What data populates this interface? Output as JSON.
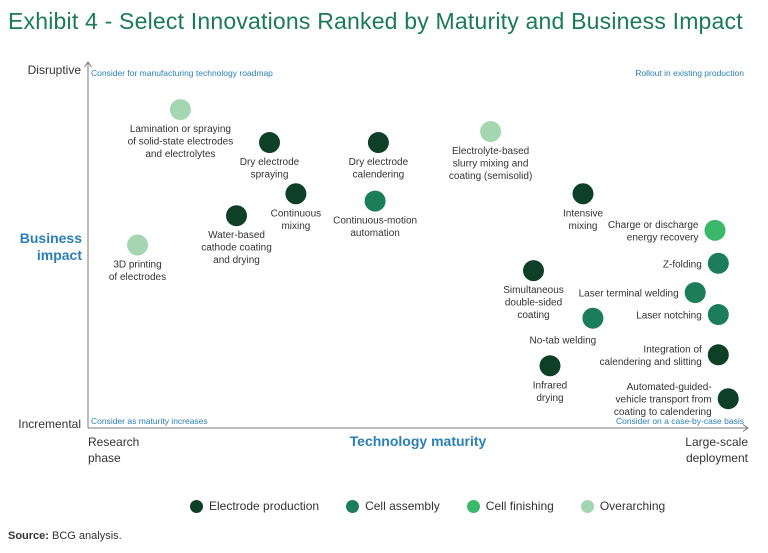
{
  "title": "Exhibit 4 - Select Innovations Ranked by Maturity and Business Impact",
  "colors": {
    "title": "#1b7a5a",
    "axis_title": "#2a7fb8",
    "corner_note": "#2a7fb8",
    "axis": "#7a7a7a",
    "text": "#333333",
    "categories": {
      "Electrode production": "#0e3f27",
      "Cell assembly": "#1c7d5b",
      "Cell finishing": "#3cb86b",
      "Overarching": "#a4d6b1"
    }
  },
  "source": {
    "label": "Source:",
    "text": "BCG analysis."
  },
  "chart_data": {
    "type": "scatter",
    "title": "Select Innovations Ranked by Maturity and Business Impact",
    "xlabel": "Technology maturity",
    "ylabel": "Business impact",
    "xlim": [
      0,
      100
    ],
    "ylim": [
      0,
      100
    ],
    "grid": false,
    "x_ticks": {
      "low": "Research phase",
      "high": "Large-scale deployment"
    },
    "y_ticks": {
      "high": "Disruptive",
      "low": "Incremental"
    },
    "corner_notes": {
      "top_left": "Consider for manufacturing technology roadmap",
      "top_right": "Rollout in existing production",
      "bottom_left": "Consider as maturity increases",
      "bottom_right": "Consider on a case-by-case basis"
    },
    "legend": [
      "Electrode production",
      "Cell assembly",
      "Cell finishing",
      "Overarching"
    ],
    "points": [
      {
        "label": "Lamination or spraying of solid-state electrodes and electrolytes",
        "lines": [
          "Lamination or spraying",
          "of solid-state electrodes",
          "and electrolytes"
        ],
        "category": "Overarching",
        "x": 14,
        "y": 87,
        "label_pos": "below"
      },
      {
        "label": "Dry electrode spraying",
        "lines": [
          "Dry electrode",
          "spraying"
        ],
        "category": "Electrode production",
        "x": 27.5,
        "y": 78,
        "label_pos": "below"
      },
      {
        "label": "Dry electrode calendering",
        "lines": [
          "Dry electrode",
          "calendering"
        ],
        "category": "Electrode production",
        "x": 44,
        "y": 78,
        "label_pos": "below"
      },
      {
        "label": "Electrolyte-based slurry mixing and coating (semisolid)",
        "lines": [
          "Electrolyte-based",
          "slurry mixing and",
          "coating (semisolid)"
        ],
        "category": "Overarching",
        "x": 61,
        "y": 81,
        "label_pos": "below"
      },
      {
        "label": "Continuous mixing",
        "lines": [
          "Continuous",
          "mixing"
        ],
        "category": "Electrode production",
        "x": 31.5,
        "y": 64,
        "label_pos": "below"
      },
      {
        "label": "Continuous-motion automation",
        "lines": [
          "Continuous-motion",
          "automation"
        ],
        "category": "Cell assembly",
        "x": 43.5,
        "y": 62,
        "label_pos": "below"
      },
      {
        "label": "Intensive mixing",
        "lines": [
          "Intensive",
          "mixing"
        ],
        "category": "Electrode production",
        "x": 75,
        "y": 64,
        "label_pos": "below"
      },
      {
        "label": "Water-based cathode coating and drying",
        "lines": [
          "Water-based",
          "cathode coating",
          "and drying"
        ],
        "category": "Electrode production",
        "x": 22.5,
        "y": 58,
        "label_pos": "below"
      },
      {
        "label": "3D printing of electrodes",
        "lines": [
          "3D printing",
          "of electrodes"
        ],
        "category": "Overarching",
        "x": 7.5,
        "y": 50,
        "label_pos": "below"
      },
      {
        "label": "Charge or discharge energy recovery",
        "lines": [
          "Charge or discharge",
          "energy recovery"
        ],
        "category": "Cell finishing",
        "x": 95,
        "y": 54,
        "label_pos": "left"
      },
      {
        "label": "Z-folding",
        "lines": [
          "Z-folding"
        ],
        "category": "Cell assembly",
        "x": 95.5,
        "y": 45,
        "label_pos": "left"
      },
      {
        "label": "Simultaneous double-sided coating",
        "lines": [
          "Simultaneous",
          "double-sided",
          "coating"
        ],
        "category": "Electrode production",
        "x": 67.5,
        "y": 43,
        "label_pos": "below"
      },
      {
        "label": "Laser terminal welding",
        "lines": [
          "Laser terminal welding"
        ],
        "category": "Cell assembly",
        "x": 92,
        "y": 37,
        "label_pos": "left"
      },
      {
        "label": "Laser notching",
        "lines": [
          "Laser notching"
        ],
        "category": "Cell assembly",
        "x": 95.5,
        "y": 31,
        "label_pos": "left"
      },
      {
        "label": "No-tab welding",
        "lines": [
          "No-tab welding"
        ],
        "category": "Cell assembly",
        "x": 76.5,
        "y": 30,
        "label_pos": "below-left"
      },
      {
        "label": "Integration of calendering and slitting",
        "lines": [
          "Integration of",
          "calendering and slitting"
        ],
        "category": "Electrode production",
        "x": 95.5,
        "y": 20,
        "label_pos": "left"
      },
      {
        "label": "Infrared drying",
        "lines": [
          "Infrared",
          "drying"
        ],
        "category": "Electrode production",
        "x": 70,
        "y": 17,
        "label_pos": "below"
      },
      {
        "label": "Automated-guided-vehicle transport from coating to calendering",
        "lines": [
          "Automated-guided-",
          "vehicle transport from",
          "coating to calendering"
        ],
        "category": "Electrode production",
        "x": 97,
        "y": 8,
        "label_pos": "left"
      }
    ]
  }
}
